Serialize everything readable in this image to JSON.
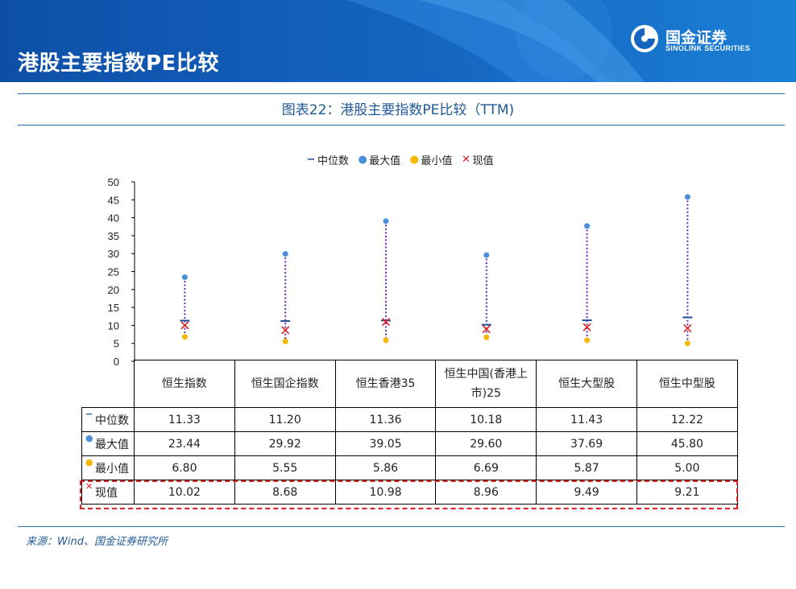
{
  "header": {
    "title": "港股主要指数PE比较",
    "logo_cn": "国金证券",
    "logo_en": "SINOLINK SECURITIES"
  },
  "figure_title": "图表22：港股主要指数PE比较（TTM)",
  "source": "来源：Wind、国金证券研究所",
  "colors": {
    "banner": "#1565c0",
    "median": "#1f4e9a",
    "max": "#4a90d9",
    "min": "#f5b800",
    "current": "#e02020",
    "range_line": "#6a2bb5",
    "highlight": "#e02020"
  },
  "chart_data": {
    "type": "scatter",
    "title": "图表22：港股主要指数PE比较（TTM)",
    "categories": [
      "恒生指数",
      "恒生国企指数",
      "恒生香港35",
      "恒生中国(香港上市)25",
      "恒生大型股",
      "恒生中型股"
    ],
    "series": [
      {
        "name": "中位数",
        "key": "median",
        "marker": "dash",
        "values": [
          11.33,
          11.2,
          11.36,
          10.18,
          11.43,
          12.22
        ]
      },
      {
        "name": "最大值",
        "key": "max",
        "marker": "dot",
        "values": [
          23.44,
          29.92,
          39.05,
          29.6,
          37.69,
          45.8
        ]
      },
      {
        "name": "最小值",
        "key": "min",
        "marker": "dot",
        "values": [
          6.8,
          5.55,
          5.86,
          6.69,
          5.87,
          5.0
        ]
      },
      {
        "name": "现值",
        "key": "current",
        "marker": "cross",
        "values": [
          10.02,
          8.68,
          10.98,
          8.96,
          9.49,
          9.21
        ]
      }
    ],
    "ylim": [
      0,
      50
    ],
    "yticks": [
      0,
      5,
      10,
      15,
      20,
      25,
      30,
      35,
      40,
      45,
      50
    ],
    "legend_position": "top-center",
    "grid": false,
    "data_table": {
      "header_lines": [
        [
          "恒生指数"
        ],
        [
          "恒生国企指数"
        ],
        [
          "恒生香港35"
        ],
        [
          "恒生中国(香港上",
          "市)25"
        ],
        [
          "恒生大型股"
        ],
        [
          "恒生中型股"
        ]
      ],
      "rows": [
        {
          "label": "中位数",
          "cells": [
            "11.33",
            "11.20",
            "11.36",
            "10.18",
            "11.43",
            "12.22"
          ]
        },
        {
          "label": "最大值",
          "cells": [
            "23.44",
            "29.92",
            "39.05",
            "29.60",
            "37.69",
            "45.80"
          ]
        },
        {
          "label": "最小值",
          "cells": [
            "6.80",
            "5.55",
            "5.86",
            "6.69",
            "5.87",
            "5.00"
          ]
        },
        {
          "label": "现值",
          "cells": [
            "10.02",
            "8.68",
            "10.98",
            "8.96",
            "9.49",
            "9.21"
          ]
        }
      ]
    }
  }
}
